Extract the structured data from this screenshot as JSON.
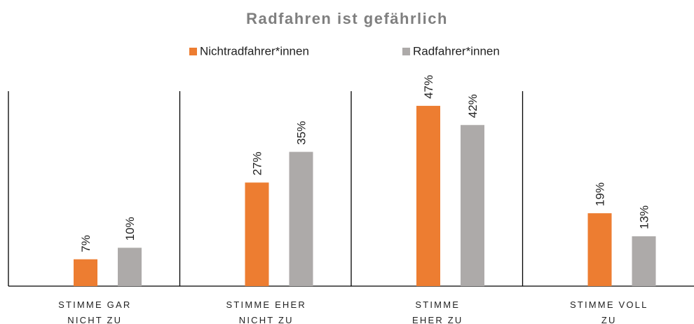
{
  "chart_data": {
    "type": "bar",
    "title": "Radfahren ist gefährlich",
    "categories": [
      "STIMME GAR\nNICHT ZU",
      "STIMME EHER\nNICHT ZU",
      "STIMME\nEHER ZU",
      "STIMME VOLL\nZU"
    ],
    "series": [
      {
        "name": "Nichtradfahrer*innen",
        "color": "#ED7D31",
        "values": [
          7,
          27,
          47,
          19
        ],
        "value_labels": [
          "7%",
          "27%",
          "47%",
          "19%"
        ]
      },
      {
        "name": "Radfahrer*innen",
        "color": "#ADAAA9",
        "values": [
          10,
          35,
          42,
          13
        ],
        "value_labels": [
          "10%",
          "35%",
          "42%",
          "13%"
        ]
      }
    ]
  }
}
